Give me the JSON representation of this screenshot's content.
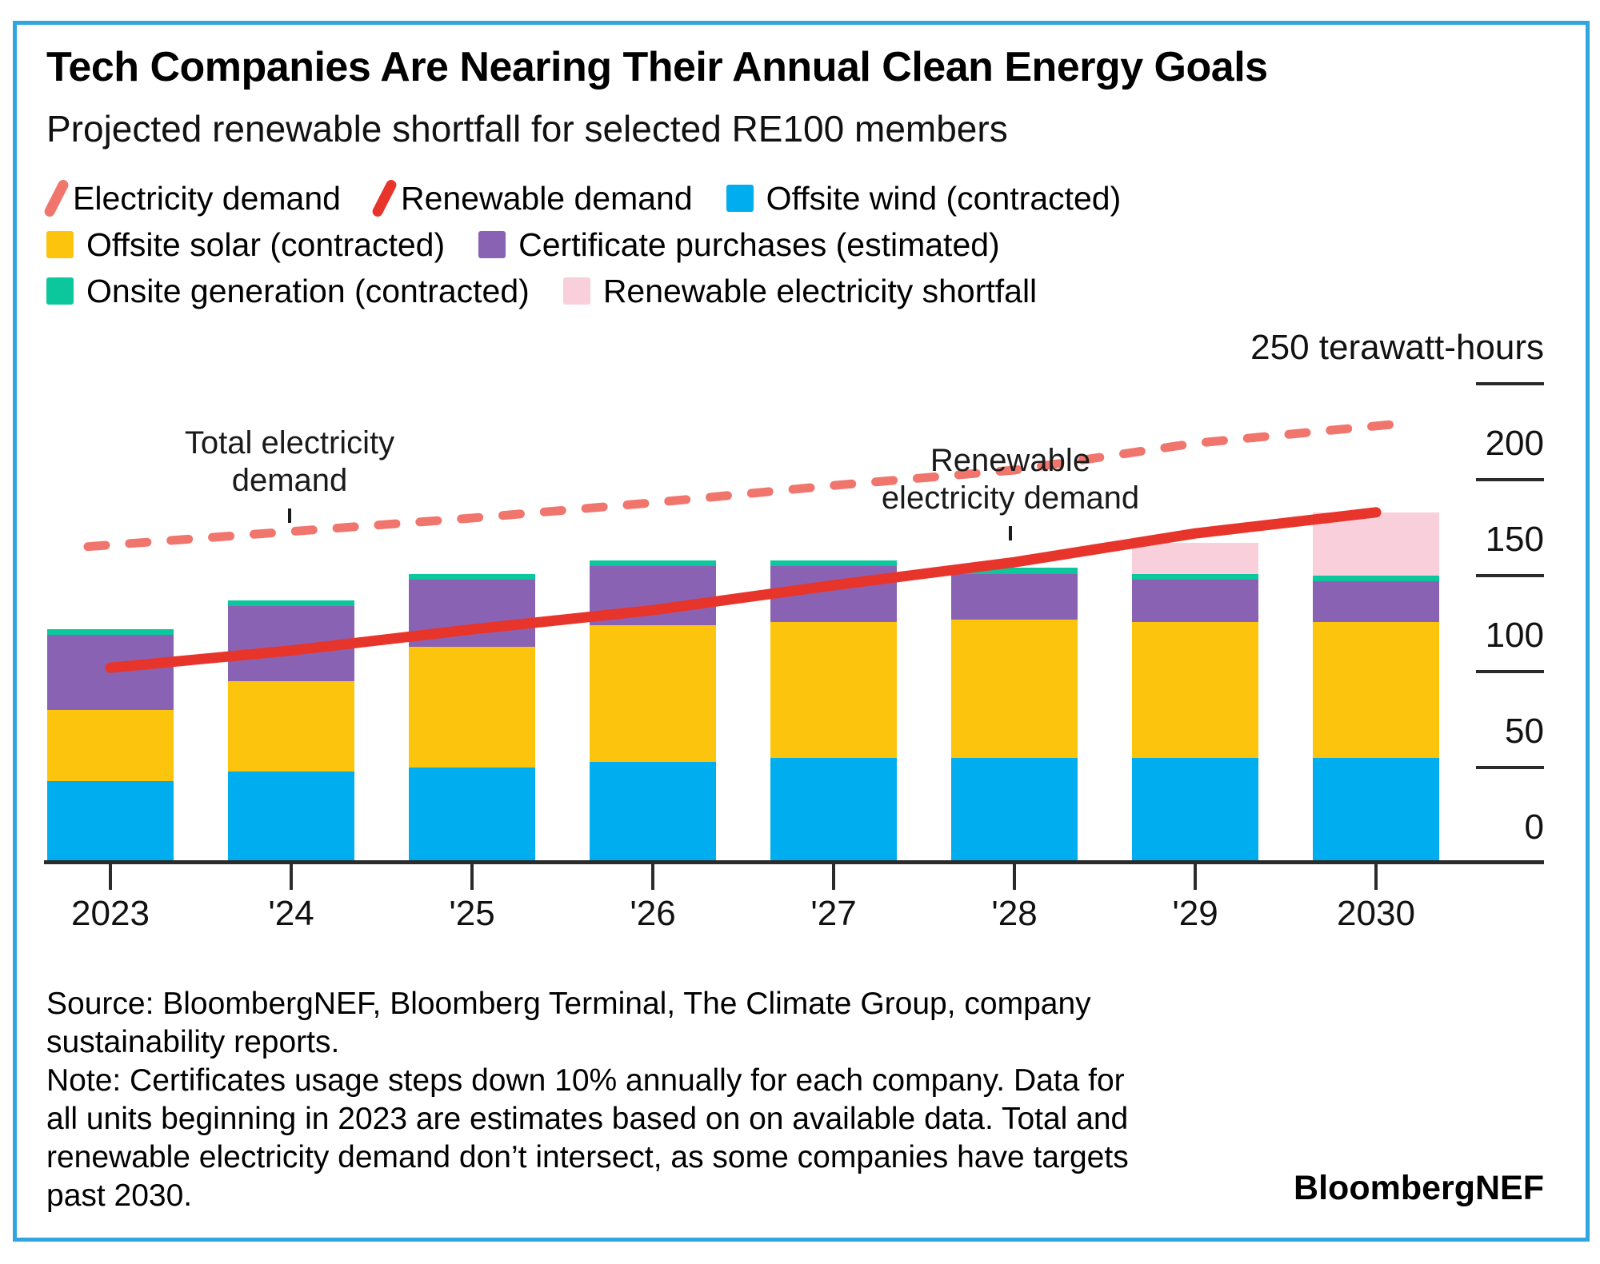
{
  "header": {
    "title": "Tech Companies Are Nearing Their Annual Clean Energy Goals",
    "subtitle": "Projected renewable shortfall for selected RE100 members"
  },
  "colors": {
    "wind": "#00AEEF",
    "solar": "#FDC40D",
    "certs": "#8A62B3",
    "onsite": "#0CC79C",
    "shortfall": "#F9CFDB",
    "electricity_demand": "#F0756D",
    "renewable_demand": "#E7352C",
    "frame": "#30A5E0",
    "axis": "#2b2b2b"
  },
  "legend": {
    "rows": [
      [
        {
          "marker": "slash",
          "color": "electricity_demand",
          "label": "Electricity demand"
        },
        {
          "marker": "slash",
          "color": "renewable_demand",
          "label": "Renewable demand"
        },
        {
          "marker": "square",
          "color": "wind",
          "label": "Offsite wind (contracted)"
        }
      ],
      [
        {
          "marker": "square",
          "color": "solar",
          "label": "Offsite solar (contracted)"
        },
        {
          "marker": "square",
          "color": "certs",
          "label": "Certificate purchases (estimated)"
        }
      ],
      [
        {
          "marker": "square",
          "color": "onsite",
          "label": "Onsite generation (contracted)"
        },
        {
          "marker": "square",
          "color": "shortfall",
          "label": "Renewable electricity shortfall"
        }
      ]
    ]
  },
  "annotations": {
    "total": {
      "line1": "Total electricity",
      "line2": "demand"
    },
    "renewable": {
      "line1": "Renewable",
      "line2": "electricity demand"
    }
  },
  "chart_data": {
    "type": "bar",
    "stacked": true,
    "title": "Tech Companies Are Nearing Their Annual Clean Energy Goals",
    "subtitle": "Projected renewable shortfall for selected RE100 members",
    "categories": [
      "2023",
      "'24",
      "'25",
      "'26",
      "'27",
      "'28",
      "'29",
      "2030"
    ],
    "unit_label": "250 terawatt-hours",
    "series": [
      {
        "name": "Offsite wind (contracted)",
        "key": "wind",
        "values": [
          43,
          48,
          50,
          53,
          55,
          55,
          55,
          55
        ]
      },
      {
        "name": "Offsite solar (contracted)",
        "key": "solar",
        "values": [
          37,
          47,
          63,
          71,
          71,
          72,
          71,
          71
        ]
      },
      {
        "name": "Certificate purchases (estimated)",
        "key": "certs",
        "values": [
          39,
          39,
          35,
          31,
          29,
          24,
          22,
          21
        ]
      },
      {
        "name": "Onsite generation (contracted)",
        "key": "onsite",
        "values": [
          3,
          3,
          3,
          3,
          3,
          3,
          3,
          3
        ]
      },
      {
        "name": "Renewable electricity shortfall",
        "key": "shortfall",
        "values": [
          0,
          0,
          0,
          0,
          0,
          0,
          16,
          33
        ]
      }
    ],
    "lines": [
      {
        "name": "Electricity demand",
        "key": "electricity_demand",
        "style": "dashed",
        "values": [
          166,
          173,
          180,
          188,
          197,
          205,
          219,
          228
        ]
      },
      {
        "name": "Renewable demand",
        "key": "renewable_demand",
        "style": "solid",
        "values": [
          102,
          111,
          122,
          132,
          145,
          157,
          172,
          183
        ]
      }
    ],
    "y_axis": {
      "side": "right",
      "ylim": [
        0,
        250
      ],
      "grid": false,
      "ticks": [
        {
          "value": 250,
          "label": "250 terawatt-hours"
        },
        {
          "value": 200,
          "label": "200"
        },
        {
          "value": 150,
          "label": "150"
        },
        {
          "value": 100,
          "label": "100"
        },
        {
          "value": 50,
          "label": "50"
        },
        {
          "value": 0,
          "label": "0"
        }
      ]
    }
  },
  "footer": {
    "lines": [
      "Source: BloombergNEF, Bloomberg Terminal, The Climate Group, company",
      "sustainability reports.",
      "Note: Certificates usage steps down 10% annually for each company. Data for",
      "all units beginning in 2023 are estimates based on on available data. Total and",
      "renewable electricity demand don’t intersect, as some companies have targets",
      "past 2030."
    ],
    "brand": "BloombergNEF"
  }
}
